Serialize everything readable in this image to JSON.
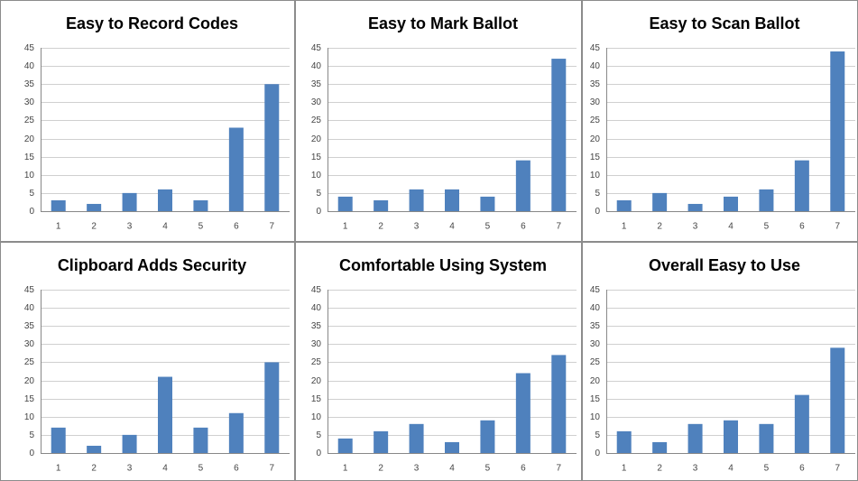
{
  "chart_data": [
    {
      "type": "bar",
      "title": "Easy to Record Codes",
      "categories": [
        "1",
        "2",
        "3",
        "4",
        "5",
        "6",
        "7"
      ],
      "values": [
        3,
        2,
        5,
        6,
        3,
        23,
        35
      ],
      "color": "#4f81bd",
      "ylim": [
        0,
        45
      ],
      "yticks": [
        0,
        5,
        10,
        15,
        20,
        25,
        30,
        35,
        40,
        45
      ],
      "grid": true
    },
    {
      "type": "bar",
      "title": "Easy to Mark Ballot",
      "categories": [
        "1",
        "2",
        "3",
        "4",
        "5",
        "6",
        "7"
      ],
      "values": [
        4,
        3,
        6,
        6,
        4,
        14,
        42
      ],
      "color": "#4f81bd",
      "ylim": [
        0,
        45
      ],
      "yticks": [
        0,
        5,
        10,
        15,
        20,
        25,
        30,
        35,
        40,
        45
      ],
      "grid": true
    },
    {
      "type": "bar",
      "title": "Easy to Scan Ballot",
      "categories": [
        "1",
        "2",
        "3",
        "4",
        "5",
        "6",
        "7"
      ],
      "values": [
        3,
        5,
        2,
        4,
        6,
        14,
        44
      ],
      "color": "#4f81bd",
      "ylim": [
        0,
        45
      ],
      "yticks": [
        0,
        5,
        10,
        15,
        20,
        25,
        30,
        35,
        40,
        45
      ],
      "grid": true
    },
    {
      "type": "bar",
      "title": "Clipboard Adds Security",
      "categories": [
        "1",
        "2",
        "3",
        "4",
        "5",
        "6",
        "7"
      ],
      "values": [
        7,
        2,
        5,
        21,
        7,
        11,
        25
      ],
      "color": "#4f81bd",
      "ylim": [
        0,
        45
      ],
      "yticks": [
        0,
        5,
        10,
        15,
        20,
        25,
        30,
        35,
        40,
        45
      ],
      "grid": true
    },
    {
      "type": "bar",
      "title": "Comfortable Using System",
      "categories": [
        "1",
        "2",
        "3",
        "4",
        "5",
        "6",
        "7"
      ],
      "values": [
        4,
        6,
        8,
        3,
        9,
        22,
        27
      ],
      "color": "#4f81bd",
      "ylim": [
        0,
        45
      ],
      "yticks": [
        0,
        5,
        10,
        15,
        20,
        25,
        30,
        35,
        40,
        45
      ],
      "grid": true
    },
    {
      "type": "bar",
      "title": "Overall Easy to Use",
      "categories": [
        "1",
        "2",
        "3",
        "4",
        "5",
        "6",
        "7"
      ],
      "values": [
        6,
        3,
        8,
        9,
        8,
        16,
        29
      ],
      "color": "#4f81bd",
      "ylim": [
        0,
        45
      ],
      "yticks": [
        0,
        5,
        10,
        15,
        20,
        25,
        30,
        35,
        40,
        45
      ],
      "grid": true
    }
  ]
}
